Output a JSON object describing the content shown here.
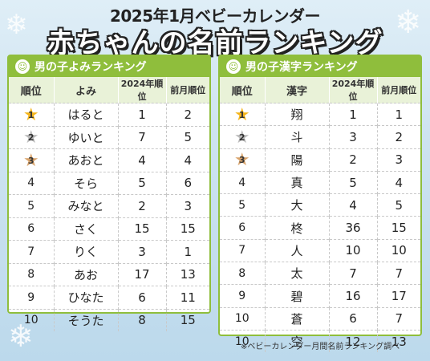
{
  "title_top": "2025年1月ベビーカレンダー",
  "title_main": "赤ちゃんの名前ランキング",
  "colors": {
    "accent": "#8fbe3c",
    "gold": "#f4b41a",
    "silver": "#b9b9b9",
    "bronze": "#d9a36a"
  },
  "left": {
    "heading": "男の子よみランキング",
    "headers": [
      "順位",
      "よみ",
      "2024年順位",
      "前月順位"
    ],
    "rows": [
      [
        "1",
        "はると",
        "1",
        "2"
      ],
      [
        "2",
        "ゆいと",
        "7",
        "5"
      ],
      [
        "3",
        "あおと",
        "4",
        "4"
      ],
      [
        "4",
        "そら",
        "5",
        "6"
      ],
      [
        "5",
        "みなと",
        "2",
        "3"
      ],
      [
        "6",
        "さく",
        "15",
        "15"
      ],
      [
        "7",
        "りく",
        "3",
        "1"
      ],
      [
        "8",
        "あお",
        "17",
        "13"
      ],
      [
        "9",
        "ひなた",
        "6",
        "11"
      ],
      [
        "10",
        "そうた",
        "8",
        "15"
      ]
    ]
  },
  "right": {
    "heading": "男の子漢字ランキング",
    "headers": [
      "順位",
      "漢字",
      "2024年順位",
      "前月順位"
    ],
    "rows": [
      [
        "1",
        "翔",
        "1",
        "1"
      ],
      [
        "2",
        "斗",
        "3",
        "2"
      ],
      [
        "3",
        "陽",
        "2",
        "3"
      ],
      [
        "4",
        "真",
        "5",
        "4"
      ],
      [
        "5",
        "大",
        "4",
        "5"
      ],
      [
        "6",
        "柊",
        "36",
        "15"
      ],
      [
        "7",
        "人",
        "10",
        "10"
      ],
      [
        "8",
        "太",
        "7",
        "7"
      ],
      [
        "9",
        "碧",
        "16",
        "17"
      ],
      [
        "10",
        "蒼",
        "6",
        "7"
      ],
      [
        "10",
        "空",
        "12",
        "13"
      ]
    ]
  },
  "footnote": "※ベビーカレンダー月間名前ランキング調べ"
}
